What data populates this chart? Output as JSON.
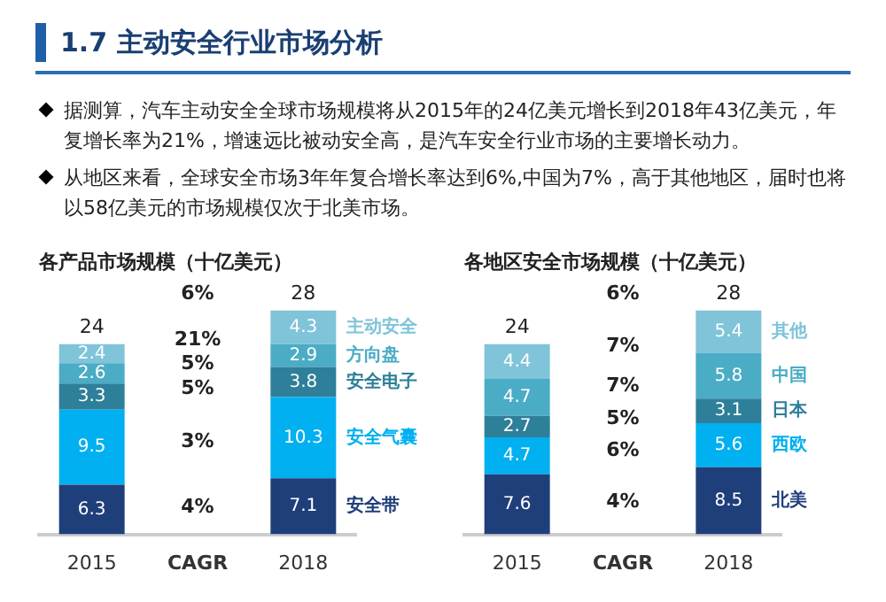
{
  "chart_data": [
    {
      "type": "other",
      "title": "1.7 主动安全行业市场分析",
      "annotations": [
        "据测算，汽车主动安全全球市场规模将从2015年的24亿美元增长到2018年43亿美元，年复增长率为21%，增速远比被动安全高，是汽车安全行业市场的主要增长动力。",
        "从地区来看，全球安全市场3年年复合增长率达到6%,中国为7%，高于其他地区，届时也将以58亿美元的市场规模仅次于北美市场。"
      ]
    },
    {
      "type": "bar",
      "stacked": true,
      "title": "各产品市场规模（十亿美元）",
      "categories": [
        "2015",
        "CAGR",
        "2018"
      ],
      "data_labels": true,
      "legend": false,
      "grid": false,
      "totals": [
        "24",
        null,
        "28"
      ],
      "series": [
        {
          "name": "安全带",
          "color": "#1f3f7a",
          "values": [
            6.3,
            null,
            7.1
          ]
        },
        {
          "name": "安全气囊",
          "color": "#00b0f0",
          "values": [
            9.5,
            null,
            10.3
          ]
        },
        {
          "name": "安全电子",
          "color": "#2e7f99",
          "values": [
            3.3,
            null,
            3.8
          ]
        },
        {
          "name": "方向盘",
          "color": "#4bacc6",
          "values": [
            2.6,
            null,
            2.9
          ]
        },
        {
          "name": "主动安全",
          "color": "#7fc4d8",
          "values": [
            2.4,
            null,
            4.3
          ]
        }
      ],
      "annotations": [
        "4%",
        "3%",
        "5%",
        "5%",
        "21%",
        "6%"
      ]
    },
    {
      "type": "bar",
      "stacked": true,
      "title": "各地区安全市场规模（十亿美元）",
      "categories": [
        "2015",
        "CAGR",
        "2018"
      ],
      "data_labels": true,
      "legend": false,
      "grid": false,
      "totals": [
        "24",
        null,
        "28"
      ],
      "series": [
        {
          "name": "北美",
          "color": "#1f3f7a",
          "values": [
            7.6,
            null,
            8.5
          ]
        },
        {
          "name": "西欧",
          "color": "#00b0f0",
          "values": [
            4.7,
            null,
            5.6
          ]
        },
        {
          "name": "日本",
          "color": "#2e7f99",
          "values": [
            2.7,
            null,
            3.1
          ]
        },
        {
          "name": "中国",
          "color": "#4bacc6",
          "values": [
            4.7,
            null,
            5.8
          ]
        },
        {
          "name": "其他",
          "color": "#7fc4d8",
          "values": [
            4.4,
            null,
            5.4
          ]
        }
      ],
      "annotations": [
        "4%",
        "6%",
        "5%",
        "7%",
        "7%",
        "6%"
      ]
    }
  ]
}
